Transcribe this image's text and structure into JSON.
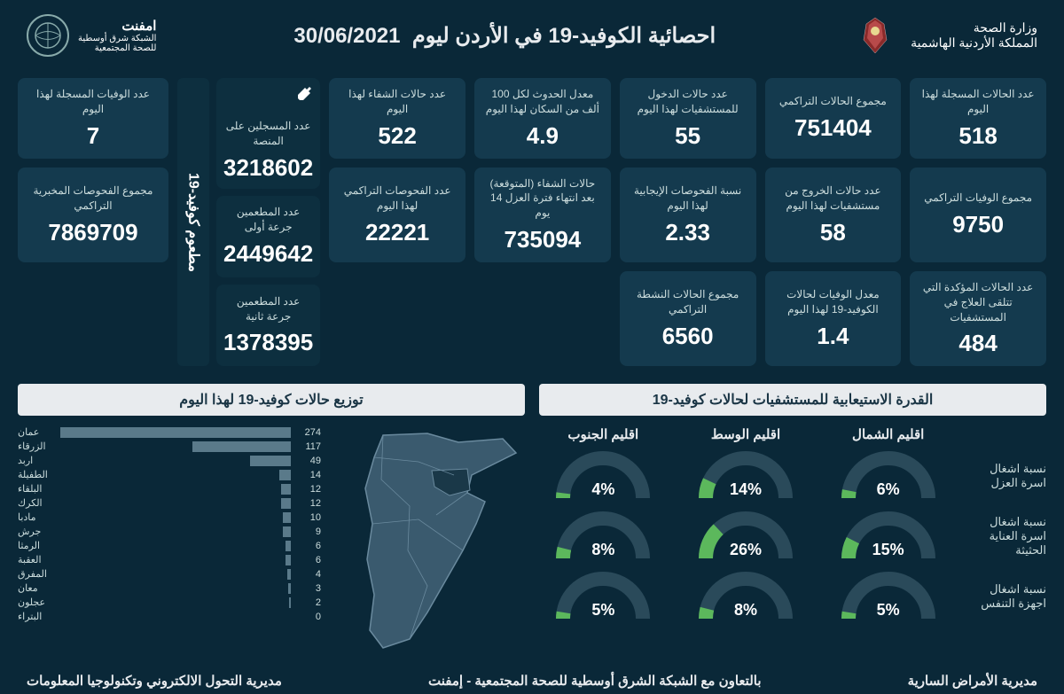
{
  "header": {
    "ministry_line1": "وزارة الصحة",
    "ministry_line2": "المملكة الأردنية الهاشمية",
    "title": "احصائية الكوفيد-19 في الأردن ليوم",
    "date": "30/06/2021",
    "org_line1": "امفنت",
    "org_line2": "الشبكة شرق أوسطية",
    "org_line3": "للصحة المجتمعية"
  },
  "stats": [
    {
      "label": "عدد الحالات المسجلة لهذا اليوم",
      "value": "518"
    },
    {
      "label": "مجموع الحالات التراكمي",
      "value": "751404"
    },
    {
      "label": "عدد حالات الدخول للمستشفيات لهذا اليوم",
      "value": "55"
    },
    {
      "label": "معدل الحدوث لكل 100 ألف من السكان لهذا اليوم",
      "value": "4.9"
    },
    {
      "label": "عدد حالات الشفاء لهذا اليوم",
      "value": "522"
    },
    {
      "label": "عدد الوفيات المسجلة لهذا اليوم",
      "value": "7"
    },
    {
      "label": "مجموع الوفيات التراكمي",
      "value": "9750"
    },
    {
      "label": "عدد حالات الخروج من مستشفيات لهذا اليوم",
      "value": "58"
    },
    {
      "label": "نسبة الفحوصات الإيجابية لهذا اليوم",
      "value": "2.33"
    },
    {
      "label": "حالات الشفاء (المتوقعة) بعد انتهاء فترة العزل 14 يوم",
      "value": "735094"
    },
    {
      "label": "عدد الفحوصات التراكمي لهذا اليوم",
      "value": "22221"
    },
    {
      "label": "مجموع الفحوصات المخبرية التراكمي",
      "value": "7869709"
    },
    {
      "label": "عدد الحالات المؤكدة التي تتلقى العلاج في المستشفيات",
      "value": "484"
    },
    {
      "label": "معدل الوفيات لحالات الكوفيد-19 لهذا اليوم",
      "value": "1.4"
    },
    {
      "label": "مجموع الحالات النشطة التراكمي",
      "value": "6560"
    }
  ],
  "vaccine": {
    "header": "مطعوم كوفيد-19",
    "cards": [
      {
        "label": "عدد المسجلين على المنصة",
        "value": "3218602"
      },
      {
        "label": "عدد المطعمين جرعة أولى",
        "value": "2449642"
      },
      {
        "label": "عدد المطعمين جرعة ثانية",
        "value": "1378395"
      }
    ]
  },
  "capacity": {
    "title": "القدرة الاستيعابية للمستشفيات لحالات كوفيد-19",
    "cols": [
      "اقليم الشمال",
      "اقليم الوسط",
      "اقليم الجنوب"
    ],
    "rows": [
      {
        "label": "نسبة اشغال اسرة العزل",
        "vals": [
          6,
          14,
          4
        ]
      },
      {
        "label": "نسبة اشغال اسرة العناية الحثيثة",
        "vals": [
          15,
          26,
          8
        ]
      },
      {
        "label": "نسبة اشغال اجهزة التنفس",
        "vals": [
          5,
          8,
          5
        ]
      }
    ],
    "gauge_bg": "#2a4a5a",
    "gauge_fg": "#5cb85c",
    "gauge_stroke": 16
  },
  "distribution": {
    "title": "توزيع حالات كوفيد-19 لهذا اليوم",
    "bars": [
      {
        "label": "عمان",
        "value": 274
      },
      {
        "label": "الزرقاء",
        "value": 117
      },
      {
        "label": "اربد",
        "value": 49
      },
      {
        "label": "الطفيلة",
        "value": 14
      },
      {
        "label": "البلقاء",
        "value": 12
      },
      {
        "label": "الكرك",
        "value": 12
      },
      {
        "label": "مادبا",
        "value": 10
      },
      {
        "label": "جرش",
        "value": 9
      },
      {
        "label": "الرمثا",
        "value": 6
      },
      {
        "label": "العقبة",
        "value": 6
      },
      {
        "label": "المفرق",
        "value": 4
      },
      {
        "label": "معان",
        "value": 3
      },
      {
        "label": "عجلون",
        "value": 2
      },
      {
        "label": "البتراء",
        "value": 0
      }
    ],
    "bar_color": "#5a7a8a",
    "max": 274
  },
  "map": {
    "fill": "#3a5a6e",
    "stroke": "#6a8a9e",
    "highlight": "#1a3848"
  },
  "footer": {
    "right": "مديرية الأمراض السارية",
    "center": "بالتعاون مع الشبكة الشرق أوسطية للصحة المجتمعية - إمفنت",
    "left": "مديرية التحول الالكتروني وتكنولوجيا المعلومات"
  }
}
